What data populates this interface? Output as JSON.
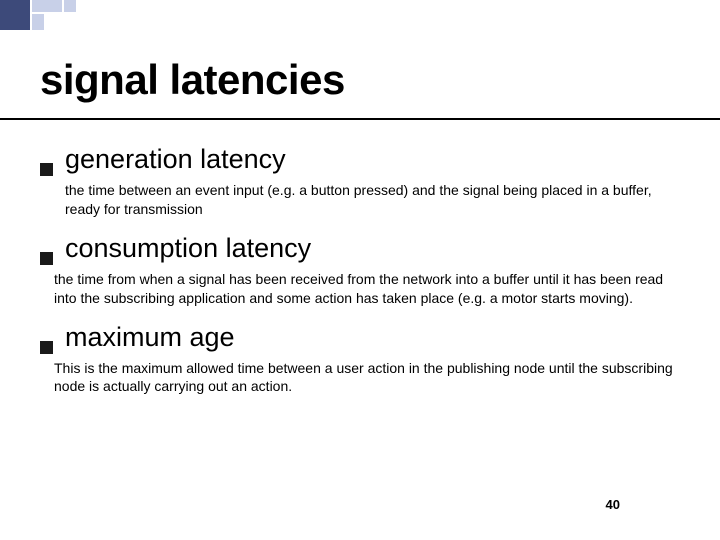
{
  "decorations": {
    "accent_color": "#3d4a7a",
    "accent_light": "#c8d0e8"
  },
  "title": "signal latencies",
  "items": [
    {
      "heading": "generation latency",
      "body": "the time between an event input (e.g. a button pressed) and the signal being placed in a buffer, ready for transmission"
    },
    {
      "heading": "consumption latency",
      "body": "the time from when a signal has been received from the network into a buffer until it has been read into the subscribing application and some action has taken place (e.g. a motor starts moving)."
    },
    {
      "heading": "maximum age",
      "body": "This is the maximum allowed time between a user action in the publishing node until the subscribing node is actually carrying out an action."
    }
  ],
  "page_number": "40"
}
